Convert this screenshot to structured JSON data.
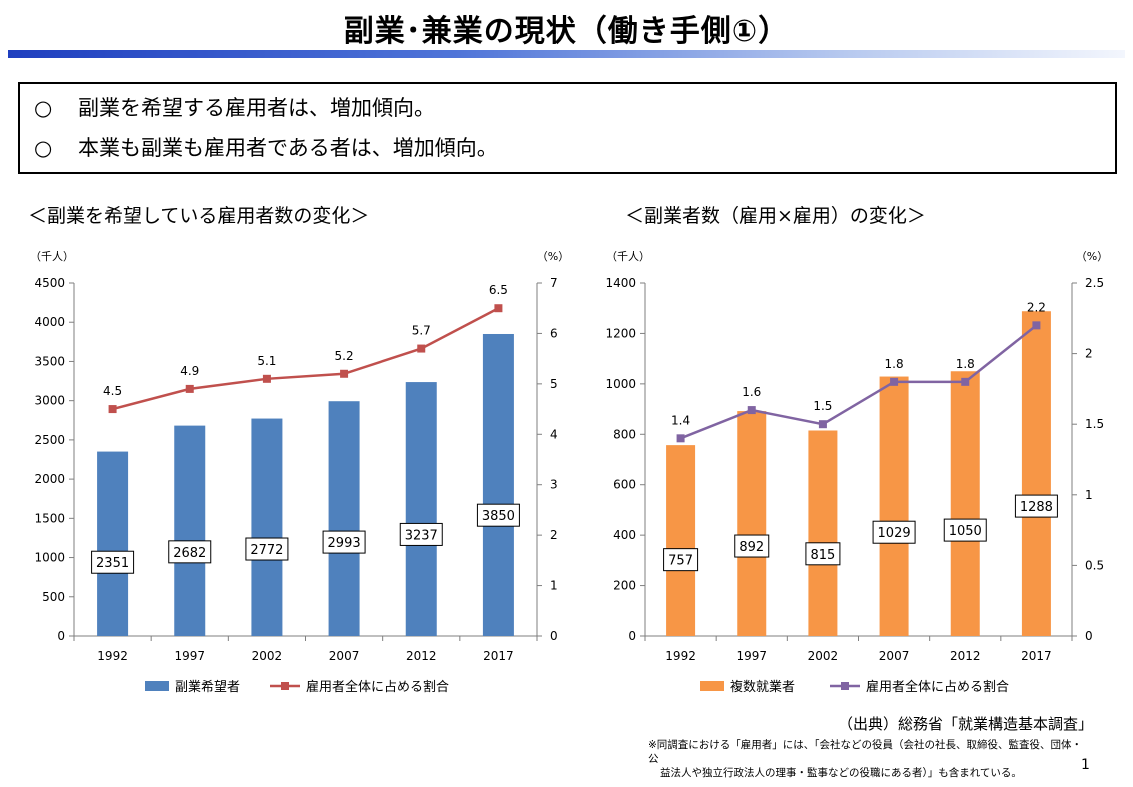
{
  "page": {
    "title": "副業･兼業の現状（働き手側①）",
    "summary": [
      {
        "mark": "○",
        "text": "副業を希望する雇用者は、増加傾向。"
      },
      {
        "mark": "○",
        "text": "本業も副業も雇用者である者は、増加傾向。"
      }
    ],
    "source": "（出典）総務省「就業構造基本調査」",
    "footnote_lines": [
      "※同調査における「雇用者」には、「会社などの役員（会社の社長、取締役、監査役、団体・公",
      "益法人や独立行政法人の理事・監事などの役職にある者）」も含まれている。"
    ],
    "page_number": "1"
  },
  "chart_data": [
    {
      "type": "bar",
      "title": "＜副業を希望している雇用者数の変化＞",
      "ylabel_left": "（千人）",
      "ylabel_right": "（%）",
      "categories": [
        "1992",
        "1997",
        "2002",
        "2007",
        "2012",
        "2017"
      ],
      "ylim_left": [
        0,
        4500
      ],
      "yticks_left": [
        0,
        500,
        1000,
        1500,
        2000,
        2500,
        3000,
        3500,
        4000,
        4500
      ],
      "ylim_right": [
        0,
        7
      ],
      "yticks_right": [
        0,
        1,
        2,
        3,
        4,
        5,
        6,
        7
      ],
      "bar_color": "#4f81bd",
      "line_color": "#c0504d",
      "line_marker": "square",
      "series": [
        {
          "name": "副業希望者",
          "kind": "bar",
          "axis": "left",
          "values": [
            2351,
            2682,
            2772,
            2993,
            3237,
            3850
          ]
        },
        {
          "name": "雇用者全体に占める割合",
          "kind": "line",
          "axis": "right",
          "values": [
            4.5,
            4.9,
            5.1,
            5.2,
            5.7,
            6.5
          ]
        }
      ],
      "legend_position": "bottom",
      "grid": false
    },
    {
      "type": "bar",
      "title": "＜副業者数（雇用×雇用）の変化＞",
      "ylabel_left": "（千人）",
      "ylabel_right": "（%）",
      "categories": [
        "1992",
        "1997",
        "2002",
        "2007",
        "2012",
        "2017"
      ],
      "ylim_left": [
        0,
        1400
      ],
      "yticks_left": [
        0,
        200,
        400,
        600,
        800,
        1000,
        1200,
        1400
      ],
      "ylim_right": [
        0,
        2.5
      ],
      "yticks_right": [
        0,
        0.5,
        1,
        1.5,
        2,
        2.5
      ],
      "bar_color": "#f79646",
      "line_color": "#8064a2",
      "line_marker": "square",
      "series": [
        {
          "name": "複数就業者",
          "kind": "bar",
          "axis": "left",
          "values": [
            757,
            892,
            815,
            1029,
            1050,
            1288
          ]
        },
        {
          "name": "雇用者全体に占める割合",
          "kind": "line",
          "axis": "right",
          "values": [
            1.4,
            1.6,
            1.5,
            1.8,
            1.8,
            2.2
          ]
        }
      ],
      "legend_position": "bottom",
      "grid": false
    }
  ]
}
